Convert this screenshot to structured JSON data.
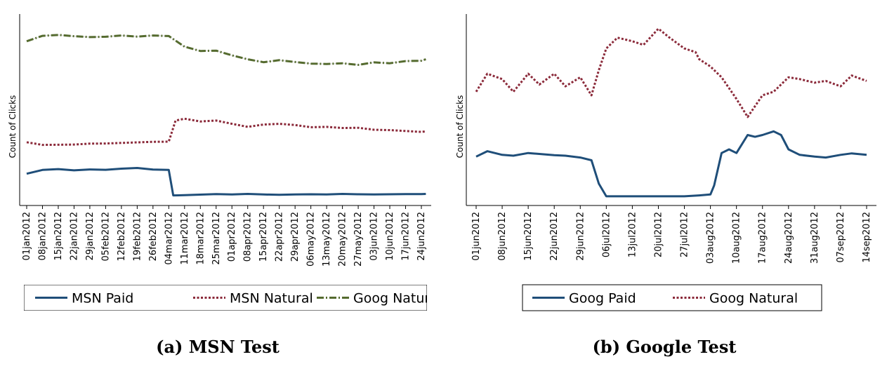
{
  "chart_data": [
    {
      "type": "line",
      "caption": "(a) MSN Test",
      "ylabel": "Count of Clicks",
      "xlabel": "",
      "y_tick_labels": "none",
      "grid": false,
      "legend_position": "bottom",
      "x_tick_labels": [
        "01jan2012",
        "08jan2012",
        "15jan2012",
        "22jan2012",
        "29jan2012",
        "05feb2012",
        "12feb2012",
        "19feb2012",
        "26feb2012",
        "04mar2012",
        "11mar2012",
        "18mar2012",
        "25mar2012",
        "01apr2012",
        "08apr2012",
        "15apr2012",
        "22apr2012",
        "29apr2012",
        "06may2012",
        "13may2012",
        "20may2012",
        "27may2012",
        "03jun2012",
        "10jun2012",
        "17jun2012",
        "24jun2012"
      ],
      "ylim": [
        0,
        100
      ],
      "x_start": "01jan2012",
      "x_end": "26jun2012",
      "series": [
        {
          "name": "MSN Paid",
          "color": "#1f4e79",
          "style": "solid",
          "x": [
            0,
            7,
            14,
            21,
            28,
            35,
            42,
            49,
            56,
            63,
            65,
            70,
            77,
            84,
            91,
            98,
            105,
            112,
            119,
            126,
            133,
            140,
            147,
            154,
            161,
            168,
            175,
            177
          ],
          "y": [
            14.5,
            16.6,
            17.1,
            16.4,
            16.9,
            16.7,
            17.3,
            17.7,
            16.8,
            16.6,
            2.5,
            2.6,
            2.9,
            3.2,
            3.0,
            3.3,
            3.0,
            2.8,
            3.0,
            3.1,
            3.0,
            3.3,
            3.1,
            3.0,
            3.1,
            3.2,
            3.2,
            3.3
          ]
        },
        {
          "name": "MSN Natural",
          "color": "#8b2a3a",
          "style": "dotted",
          "x": [
            0,
            7,
            14,
            21,
            28,
            35,
            42,
            49,
            56,
            63,
            66,
            70,
            77,
            84,
            91,
            98,
            105,
            112,
            119,
            126,
            133,
            140,
            147,
            154,
            161,
            168,
            175,
            177
          ],
          "y": [
            32,
            30.5,
            30.6,
            30.7,
            31.2,
            31.3,
            31.6,
            31.9,
            32.2,
            32.3,
            44,
            45,
            43.5,
            44,
            42.2,
            40.5,
            41.8,
            42.2,
            41.5,
            40.3,
            40.5,
            39.9,
            40,
            38.9,
            38.7,
            38.2,
            37.7,
            38
          ]
        },
        {
          "name": "Goog Natural",
          "color": "#556b2f",
          "style": "dashdot",
          "x": [
            0,
            7,
            14,
            21,
            28,
            35,
            42,
            49,
            56,
            63,
            70,
            77,
            84,
            91,
            98,
            105,
            112,
            119,
            126,
            133,
            140,
            147,
            154,
            161,
            168,
            175,
            177
          ],
          "y": [
            88,
            91,
            91.5,
            90.8,
            90.3,
            90.5,
            91.2,
            90.6,
            91.2,
            90.9,
            85,
            82.6,
            82.8,
            80.2,
            78,
            76.4,
            77.5,
            76.5,
            75.6,
            75.4,
            75.8,
            74.9,
            76.3,
            75.8,
            77,
            77.2,
            78
          ]
        }
      ]
    },
    {
      "type": "line",
      "caption": "(b) Google Test",
      "ylabel": "Count of Clicks",
      "xlabel": "",
      "y_tick_labels": "none",
      "grid": false,
      "legend_position": "bottom",
      "x_tick_labels": [
        "01jun2012",
        "08jun2012",
        "15jun2012",
        "22jun2012",
        "29jun2012",
        "06jul2012",
        "13jul2012",
        "20jul2012",
        "27jul2012",
        "03aug2012",
        "10aug2012",
        "17aug2012",
        "24aug2012",
        "31aug2012",
        "07sep2012",
        "14sep2012"
      ],
      "ylim": [
        0,
        100
      ],
      "x_start": "01jun2012",
      "x_end": "14sep2012",
      "series": [
        {
          "name": "Goog Paid",
          "color": "#1f4e79",
          "style": "solid",
          "x": [
            0,
            3,
            7,
            10,
            14,
            17,
            21,
            24,
            28,
            31,
            33,
            35,
            38,
            42,
            49,
            56,
            60,
            63,
            64,
            66,
            68,
            70,
            73,
            75,
            77,
            80,
            82,
            84,
            87,
            91,
            94,
            98,
            101,
            105
          ],
          "y": [
            24,
            27,
            25,
            24.5,
            26,
            25.5,
            24.8,
            24.5,
            23.5,
            22,
            9,
            2,
            2,
            2,
            2,
            2,
            2.5,
            3,
            8,
            26,
            28,
            26,
            36,
            35,
            36,
            38,
            36,
            28,
            25,
            24,
            23.5,
            25,
            25.8,
            25
          ]
        },
        {
          "name": "Goog Natural",
          "color": "#8b2a3a",
          "style": "dotted",
          "x": [
            0,
            3,
            7,
            10,
            14,
            17,
            21,
            24,
            28,
            31,
            33,
            35,
            38,
            42,
            45,
            49,
            52,
            56,
            59,
            60,
            63,
            66,
            70,
            73,
            75,
            77,
            80,
            84,
            87,
            91,
            94,
            98,
            101,
            105
          ],
          "y": [
            60,
            70,
            67,
            60,
            70,
            64,
            70,
            63,
            68,
            58,
            72,
            84,
            90,
            88,
            86,
            95,
            90,
            84,
            82,
            78,
            74,
            68,
            56,
            46,
            52,
            58,
            60,
            68,
            67,
            65,
            66,
            63,
            69,
            66
          ]
        }
      ]
    }
  ]
}
